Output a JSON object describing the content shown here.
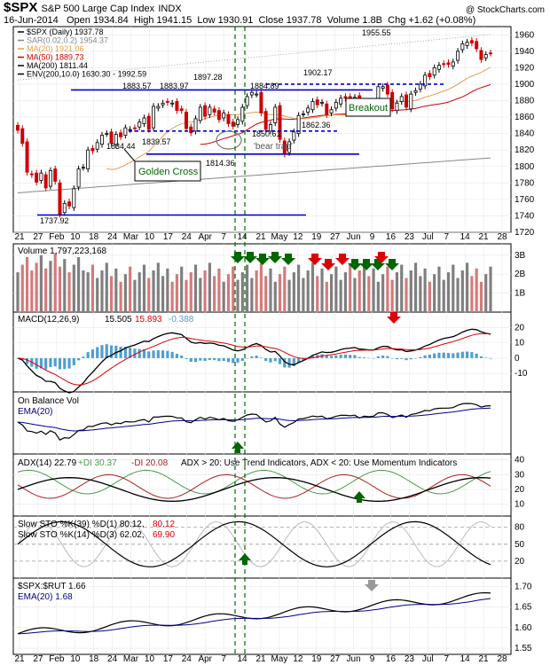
{
  "header": {
    "symbol": "$SPX",
    "name": "S&P 500 Large Cap Index",
    "exchange": "INDX",
    "brand": "@ StockCharts.com",
    "date": "16-Jun-2014",
    "open_label": "Open",
    "open": "1934.84",
    "high_label": "High",
    "high": "1941.15",
    "low_label": "Low",
    "low": "1930.91",
    "close_label": "Close",
    "close": "1937.78",
    "volume_label": "Volume",
    "volume": "1.8B",
    "chg_label": "Chg",
    "chg": "+1.62 (+0.08%)"
  },
  "colors": {
    "up": "#000000",
    "down": "#cc0000",
    "ma20": "#e0a050",
    "ma50": "#d00000",
    "ma200": "#888888",
    "env": "#000000",
    "annot_blue": "#0000cc",
    "vline": "#006600",
    "arrow_green": "#006600",
    "arrow_red": "#dd0000",
    "macd": "#000000",
    "signal": "#dd0000",
    "hist": "#4f9fcf",
    "adx": "#000000",
    "pdi": "#4c9a4c",
    "mdi": "#aa2222",
    "obv": "#000000",
    "ema": "#000088",
    "vol_up": "#7f7f7f",
    "vol_down": "#d57a7a"
  },
  "price_panel": {
    "legend": [
      {
        "text": "$SPX (Daily) 1937.78",
        "color": "#000000"
      },
      {
        "text": "SAR(0.02,0.2) 1954.37",
        "color": "#888888"
      },
      {
        "text": "MA(20) 1921.06",
        "color": "#e0a050"
      },
      {
        "text": "MA(50) 1889.73",
        "color": "#d00000"
      },
      {
        "text": "MA(200) 1811.44",
        "color": "#000000"
      },
      {
        "text": "ENV(200,10.0) 1630.30 - 1992.59",
        "color": "#000000"
      }
    ],
    "price_labels": [
      "1883.57",
      "1883.97",
      "1897.28",
      "1884.89",
      "1902.17",
      "1955.55",
      "1834.44",
      "1839.57",
      "1814.36",
      "1850.61",
      "1862.36",
      "1737.92"
    ],
    "annotations": {
      "golden_cross": "Golden Cross",
      "bear_trap": "'bear trap'",
      "breakout": "Breakout"
    },
    "yaxis": [
      "1960",
      "1940",
      "1920",
      "1900",
      "1880",
      "1860",
      "1840",
      "1820",
      "1800",
      "1780",
      "1760",
      "1740",
      "1720"
    ]
  },
  "x_axis": [
    "21",
    "27",
    "Feb",
    "10",
    "18",
    "24",
    "Mar",
    "10",
    "17",
    "24",
    "Apr",
    "7",
    "14",
    "21",
    "May",
    "12",
    "19",
    "27",
    "Jun",
    "9",
    "16",
    "23",
    "Jul",
    "7",
    "14",
    "21",
    "28"
  ],
  "volume_panel": {
    "label": "Volume 1,797,223,168",
    "yaxis": [
      "3B",
      "2B",
      "1B"
    ]
  },
  "macd_panel": {
    "label": "MACD(12,26,9)",
    "macd": "15.505",
    "signal": "15.893",
    "hist": "-0.388",
    "yaxis": [
      "20",
      "10",
      "0",
      "-10"
    ]
  },
  "obv_panel": {
    "label1": "On Balance Vol",
    "label2": "EMA(20)"
  },
  "adx_panel": {
    "label_adx": "ADX(14) 22.79",
    "label_pdi": "+DI 30.37",
    "label_mdi": "-DI 20.08",
    "label_note": "ADX > 20: Use Trend Indicators, ADX < 20: Use Momentum Indicators",
    "yaxis": [
      "40",
      "30",
      "20",
      "10"
    ]
  },
  "sto_panel": {
    "label1a": "Slow STO %K(39) %D(1) 80.12,",
    "label1b": "80.12",
    "label2a": "Slow STO %K(14) %D(3) 62.02,",
    "label2b": "69.90",
    "yaxis": [
      "80",
      "50",
      "20"
    ]
  },
  "ratio_panel": {
    "label1": "$SPX:$RUT 1.66",
    "label2": "EMA(20) 1.68",
    "yaxis": [
      "1.70",
      "1.65",
      "1.60",
      "1.55"
    ]
  },
  "chart_data": {
    "type": "candlestick",
    "title": "$SPX S&P 500 Large Cap Index INDX",
    "x": [
      "Jan 21",
      "Jan 22",
      "Jan 23",
      "Jan 24",
      "Jan 27",
      "Jan 28",
      "Jan 29",
      "Jan 30",
      "Jan 31",
      "Feb 3",
      "Feb 4",
      "Feb 5",
      "Feb 6",
      "Feb 7",
      "Feb 10",
      "Feb 11",
      "Feb 12",
      "Feb 13",
      "Feb 14",
      "Feb 18",
      "Feb 19",
      "Feb 20",
      "Feb 21",
      "Feb 24",
      "Feb 25",
      "Feb 26",
      "Feb 27",
      "Feb 28",
      "Mar 3",
      "Mar 4",
      "Mar 5",
      "Mar 6",
      "Mar 7",
      "Mar 10",
      "Mar 11",
      "Mar 12",
      "Mar 13",
      "Mar 14",
      "Mar 17",
      "Mar 18",
      "Mar 19",
      "Mar 20",
      "Mar 21",
      "Mar 24",
      "Mar 25",
      "Mar 26",
      "Mar 27",
      "Mar 28",
      "Mar 31",
      "Apr 1",
      "Apr 2",
      "Apr 3",
      "Apr 4",
      "Apr 7",
      "Apr 8",
      "Apr 9",
      "Apr 10",
      "Apr 11",
      "Apr 14",
      "Apr 15",
      "Apr 16",
      "Apr 17",
      "Apr 21",
      "Apr 22",
      "Apr 23",
      "Apr 24",
      "Apr 25",
      "Apr 28",
      "Apr 29",
      "Apr 30",
      "May 1",
      "May 2",
      "May 5",
      "May 6",
      "May 7",
      "May 8",
      "May 9",
      "May 12",
      "May 13",
      "May 14",
      "May 15",
      "May 16",
      "May 19",
      "May 20",
      "May 21",
      "May 22",
      "May 23",
      "May 27",
      "May 28",
      "May 29",
      "May 30",
      "Jun 2",
      "Jun 3",
      "Jun 4",
      "Jun 5",
      "Jun 6",
      "Jun 9",
      "Jun 10",
      "Jun 11",
      "Jun 12",
      "Jun 13",
      "Jun 16"
    ],
    "close": [
      1844,
      1828,
      1793,
      1790,
      1781,
      1792,
      1774,
      1795,
      1782,
      1742,
      1755,
      1752,
      1773,
      1797,
      1799,
      1820,
      1819,
      1829,
      1838,
      1840,
      1828,
      1839,
      1836,
      1847,
      1845,
      1846,
      1854,
      1859,
      1845,
      1873,
      1873,
      1877,
      1878,
      1877,
      1868,
      1868,
      1846,
      1841,
      1858,
      1872,
      1861,
      1872,
      1866,
      1857,
      1865,
      1852,
      1849,
      1857,
      1872,
      1885,
      1890,
      1888,
      1865,
      1845,
      1851,
      1872,
      1833,
      1815,
      1830,
      1842,
      1862,
      1864,
      1871,
      1879,
      1875,
      1878,
      1863,
      1869,
      1878,
      1883,
      1883,
      1881,
      1884,
      1867,
      1878,
      1875,
      1878,
      1897,
      1897,
      1888,
      1870,
      1877,
      1885,
      1872,
      1888,
      1892,
      1900,
      1911,
      1909,
      1920,
      1923,
      1924,
      1924,
      1927,
      1940,
      1949,
      1951,
      1950,
      1943,
      1930,
      1936,
      1937.78
    ],
    "series": [
      {
        "name": "MACD(12,26,9)",
        "values_last": 15.505
      },
      {
        "name": "Signal",
        "values_last": 15.893
      },
      {
        "name": "Histogram",
        "values_last": -0.388
      }
    ],
    "ylim": [
      1720,
      1970
    ],
    "grid": true
  }
}
